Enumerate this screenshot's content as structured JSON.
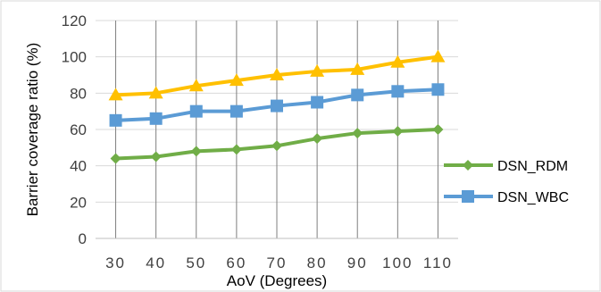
{
  "chart_data": {
    "type": "line",
    "title": "",
    "xlabel": "AoV (Degrees)",
    "ylabel": "Barrier coverage ratio (%)",
    "categories": [
      "30",
      "40",
      "50",
      "60",
      "70",
      "80",
      "90",
      "100",
      "110"
    ],
    "ylim": [
      0,
      120
    ],
    "yticks": [
      "0",
      "20",
      "40",
      "60",
      "80",
      "100",
      "120"
    ],
    "grid": true,
    "legend_position": "right",
    "series": [
      {
        "name": "DSN_RDM",
        "color": "#70AD47",
        "marker": "diamond",
        "values": [
          44,
          45,
          48,
          49,
          51,
          55,
          58,
          59,
          60
        ]
      },
      {
        "name": "DSN_WBC",
        "color": "#5B9BD5",
        "marker": "square",
        "values": [
          65,
          66,
          70,
          70,
          73,
          75,
          79,
          81,
          82
        ]
      },
      {
        "name": "",
        "color": "#FFC000",
        "marker": "triangle",
        "values": [
          79,
          80,
          84,
          87,
          90,
          92,
          93,
          97,
          100
        ]
      }
    ]
  }
}
